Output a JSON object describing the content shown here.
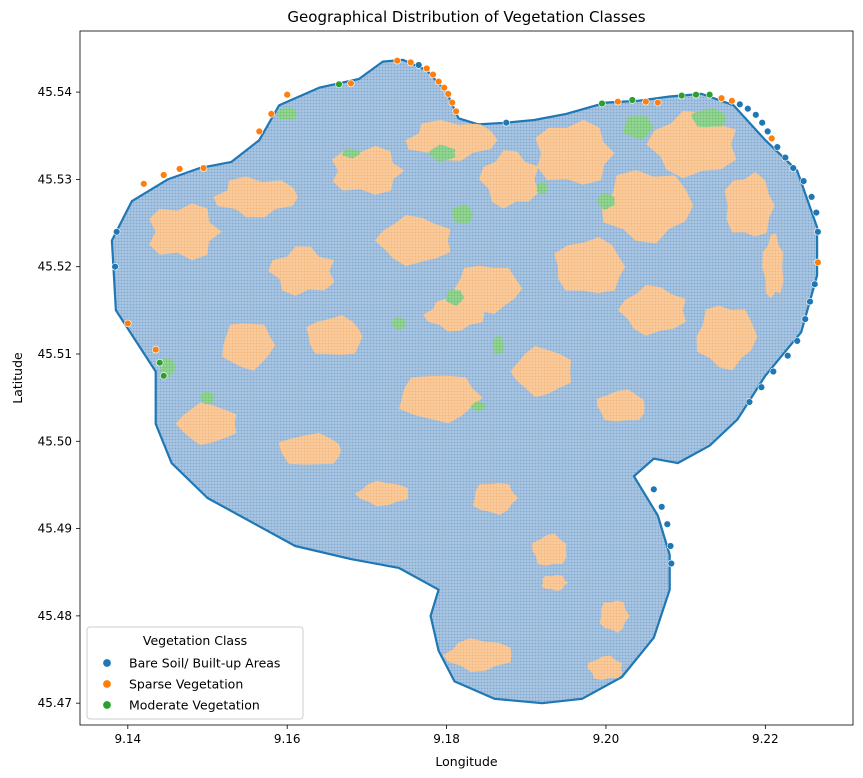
{
  "chart_data": {
    "type": "scatter",
    "title": "Geographical Distribution of Vegetation Classes",
    "xlabel": "Longitude",
    "ylabel": "Latitude",
    "xlim": [
      9.134,
      9.231
    ],
    "ylim": [
      45.4675,
      45.547
    ],
    "xticks": [
      9.14,
      9.16,
      9.18,
      9.2,
      9.22
    ],
    "xtick_labels": [
      "9.14",
      "9.16",
      "9.18",
      "9.20",
      "9.22"
    ],
    "yticks": [
      45.47,
      45.48,
      45.49,
      45.5,
      45.51,
      45.52,
      45.53,
      45.54
    ],
    "ytick_labels": [
      "45.47",
      "45.48",
      "45.49",
      "45.50",
      "45.51",
      "45.52",
      "45.53",
      "45.54"
    ],
    "grid": false,
    "legend": {
      "title": "Vegetation Class",
      "location": "lower-left"
    },
    "series": [
      {
        "name": "Bare Soil/ Built-up Areas",
        "color": "#1f77b4",
        "fill_color": "#aac6e2",
        "share": "dominant",
        "marker": "circle"
      },
      {
        "name": "Sparse Vegetation",
        "color": "#ff7f0e",
        "fill_color": "#f9c99a",
        "share": "patches",
        "marker": "circle"
      },
      {
        "name": "Moderate Vegetation",
        "color": "#2ca02c",
        "fill_color": "#8fd18f",
        "share": "small patches",
        "marker": "circle"
      }
    ],
    "region_outline": [
      [
        9.1435,
        45.508
      ],
      [
        9.1385,
        45.515
      ],
      [
        9.138,
        45.523
      ],
      [
        9.1405,
        45.5275
      ],
      [
        9.145,
        45.53
      ],
      [
        9.149,
        45.5313
      ],
      [
        9.153,
        45.532
      ],
      [
        9.1565,
        45.5345
      ],
      [
        9.159,
        45.5385
      ],
      [
        9.164,
        45.5405
      ],
      [
        9.169,
        45.5415
      ],
      [
        9.172,
        45.5435
      ],
      [
        9.1745,
        45.5437
      ],
      [
        9.1775,
        45.5425
      ],
      [
        9.18,
        45.54
      ],
      [
        9.1815,
        45.537
      ],
      [
        9.184,
        45.5363
      ],
      [
        9.1875,
        45.5365
      ],
      [
        9.191,
        45.5368
      ],
      [
        9.195,
        45.5375
      ],
      [
        9.2,
        45.5388
      ],
      [
        9.204,
        45.539
      ],
      [
        9.208,
        45.5395
      ],
      [
        9.212,
        45.5398
      ],
      [
        9.216,
        45.5385
      ],
      [
        9.22,
        45.5345
      ],
      [
        9.224,
        45.531
      ],
      [
        9.2265,
        45.5245
      ],
      [
        9.2265,
        45.519
      ],
      [
        9.2245,
        45.5125
      ],
      [
        9.22,
        45.5075
      ],
      [
        9.2165,
        45.5025
      ],
      [
        9.213,
        45.4995
      ],
      [
        9.209,
        45.4975
      ],
      [
        9.206,
        45.498
      ],
      [
        9.2035,
        45.496
      ],
      [
        9.2065,
        45.4915
      ],
      [
        9.208,
        45.487
      ],
      [
        9.208,
        45.483
      ],
      [
        9.206,
        45.4775
      ],
      [
        9.202,
        45.473
      ],
      [
        9.197,
        45.4705
      ],
      [
        9.192,
        45.47
      ],
      [
        9.186,
        45.4705
      ],
      [
        9.181,
        45.4725
      ],
      [
        9.179,
        45.476
      ],
      [
        9.178,
        45.48
      ],
      [
        9.179,
        45.483
      ],
      [
        9.174,
        45.4855
      ],
      [
        9.168,
        45.4865
      ],
      [
        9.161,
        45.488
      ],
      [
        9.156,
        45.4905
      ],
      [
        9.15,
        45.4935
      ],
      [
        9.1455,
        45.4975
      ],
      [
        9.1435,
        45.502
      ]
    ],
    "sparse_patches": [
      [
        9.147,
        45.524,
        0.005,
        0.0035
      ],
      [
        9.156,
        45.528,
        0.0055,
        0.0025
      ],
      [
        9.162,
        45.5195,
        0.0045,
        0.003
      ],
      [
        9.17,
        45.531,
        0.005,
        0.003
      ],
      [
        9.1805,
        45.5345,
        0.006,
        0.0025
      ],
      [
        9.188,
        45.53,
        0.004,
        0.0035
      ],
      [
        9.196,
        45.533,
        0.0055,
        0.004
      ],
      [
        9.205,
        45.527,
        0.006,
        0.0045
      ],
      [
        9.211,
        45.534,
        0.006,
        0.004
      ],
      [
        9.218,
        45.527,
        0.0035,
        0.004
      ],
      [
        9.215,
        45.512,
        0.004,
        0.004
      ],
      [
        9.206,
        45.515,
        0.0045,
        0.003
      ],
      [
        9.198,
        45.52,
        0.005,
        0.0035
      ],
      [
        9.185,
        45.5175,
        0.0045,
        0.003
      ],
      [
        9.176,
        45.523,
        0.005,
        0.003
      ],
      [
        9.166,
        45.512,
        0.004,
        0.0025
      ],
      [
        9.155,
        45.511,
        0.0035,
        0.003
      ],
      [
        9.15,
        45.502,
        0.004,
        0.0025
      ],
      [
        9.163,
        45.499,
        0.0045,
        0.002
      ],
      [
        9.179,
        45.505,
        0.0055,
        0.003
      ],
      [
        9.192,
        45.508,
        0.004,
        0.003
      ],
      [
        9.202,
        45.504,
        0.0035,
        0.002
      ],
      [
        9.186,
        45.4935,
        0.003,
        0.002
      ],
      [
        9.172,
        45.494,
        0.0035,
        0.0015
      ],
      [
        9.193,
        45.4875,
        0.0025,
        0.002
      ],
      [
        9.201,
        45.48,
        0.002,
        0.002
      ],
      [
        9.184,
        45.4755,
        0.0045,
        0.002
      ],
      [
        9.2,
        45.474,
        0.0025,
        0.0015
      ],
      [
        9.1935,
        45.4838,
        0.0018,
        0.001
      ],
      [
        9.181,
        45.5145,
        0.004,
        0.002
      ],
      [
        9.221,
        45.52,
        0.0015,
        0.004
      ]
    ],
    "moderate_patches": [
      [
        9.145,
        45.5085,
        0.001,
        0.0012
      ],
      [
        9.15,
        45.505,
        0.001,
        0.0008
      ],
      [
        9.16,
        45.5375,
        0.0015,
        0.0008
      ],
      [
        9.168,
        45.533,
        0.0012,
        0.0006
      ],
      [
        9.1795,
        45.533,
        0.0018,
        0.001
      ],
      [
        9.182,
        45.526,
        0.0015,
        0.0012
      ],
      [
        9.181,
        45.5165,
        0.0012,
        0.001
      ],
      [
        9.174,
        45.5135,
        0.001,
        0.0008
      ],
      [
        9.1865,
        45.511,
        0.0008,
        0.0012
      ],
      [
        9.204,
        45.536,
        0.002,
        0.0015
      ],
      [
        9.2,
        45.5275,
        0.0012,
        0.001
      ],
      [
        9.213,
        45.537,
        0.0025,
        0.0012
      ],
      [
        9.192,
        45.529,
        0.0008,
        0.0008
      ],
      [
        9.184,
        45.504,
        0.001,
        0.0006
      ]
    ],
    "edge_points": [
      {
        "class": 1,
        "x": 9.1738,
        "y": 45.5436
      },
      {
        "class": 1,
        "x": 9.1755,
        "y": 45.5434
      },
      {
        "class": 0,
        "x": 9.1765,
        "y": 45.5431
      },
      {
        "class": 1,
        "x": 9.1775,
        "y": 45.5427
      },
      {
        "class": 1,
        "x": 9.1783,
        "y": 45.542
      },
      {
        "class": 1,
        "x": 9.179,
        "y": 45.5412
      },
      {
        "class": 1,
        "x": 9.1797,
        "y": 45.5405
      },
      {
        "class": 1,
        "x": 9.1802,
        "y": 45.5398
      },
      {
        "class": 1,
        "x": 9.1807,
        "y": 45.5388
      },
      {
        "class": 1,
        "x": 9.1812,
        "y": 45.5378
      },
      {
        "class": 0,
        "x": 9.1875,
        "y": 45.5365
      },
      {
        "class": 1,
        "x": 9.1495,
        "y": 45.5313
      },
      {
        "class": 1,
        "x": 9.1465,
        "y": 45.5312
      },
      {
        "class": 1,
        "x": 9.1445,
        "y": 45.5305
      },
      {
        "class": 1,
        "x": 9.142,
        "y": 45.5295
      },
      {
        "class": 1,
        "x": 9.16,
        "y": 45.5397
      },
      {
        "class": 2,
        "x": 9.1665,
        "y": 45.5409
      },
      {
        "class": 1,
        "x": 9.168,
        "y": 45.541
      },
      {
        "class": 1,
        "x": 9.158,
        "y": 45.5375
      },
      {
        "class": 1,
        "x": 9.1565,
        "y": 45.5355
      },
      {
        "class": 2,
        "x": 9.1995,
        "y": 45.5387
      },
      {
        "class": 1,
        "x": 9.2015,
        "y": 45.5389
      },
      {
        "class": 2,
        "x": 9.2033,
        "y": 45.5391
      },
      {
        "class": 1,
        "x": 9.205,
        "y": 45.5389
      },
      {
        "class": 1,
        "x": 9.2065,
        "y": 45.5388
      },
      {
        "class": 2,
        "x": 9.2095,
        "y": 45.5396
      },
      {
        "class": 2,
        "x": 9.2113,
        "y": 45.5397
      },
      {
        "class": 2,
        "x": 9.213,
        "y": 45.5397
      },
      {
        "class": 1,
        "x": 9.2145,
        "y": 45.5393
      },
      {
        "class": 1,
        "x": 9.2158,
        "y": 45.539
      },
      {
        "class": 0,
        "x": 9.2168,
        "y": 45.5386
      },
      {
        "class": 0,
        "x": 9.2178,
        "y": 45.5381
      },
      {
        "class": 0,
        "x": 9.2188,
        "y": 45.5374
      },
      {
        "class": 0,
        "x": 9.2196,
        "y": 45.5365
      },
      {
        "class": 0,
        "x": 9.2203,
        "y": 45.5355
      },
      {
        "class": 1,
        "x": 9.2208,
        "y": 45.5347
      },
      {
        "class": 0,
        "x": 9.2215,
        "y": 45.5337
      },
      {
        "class": 0,
        "x": 9.2225,
        "y": 45.5325
      },
      {
        "class": 0,
        "x": 9.2235,
        "y": 45.5313
      },
      {
        "class": 0,
        "x": 9.2248,
        "y": 45.5298
      },
      {
        "class": 0,
        "x": 9.2258,
        "y": 45.528
      },
      {
        "class": 0,
        "x": 9.2264,
        "y": 45.5262
      },
      {
        "class": 0,
        "x": 9.2266,
        "y": 45.524
      },
      {
        "class": 1,
        "x": 9.2266,
        "y": 45.5205
      },
      {
        "class": 0,
        "x": 9.2262,
        "y": 45.518
      },
      {
        "class": 0,
        "x": 9.2256,
        "y": 45.516
      },
      {
        "class": 0,
        "x": 9.225,
        "y": 45.514
      },
      {
        "class": 0,
        "x": 9.224,
        "y": 45.5115
      },
      {
        "class": 0,
        "x": 9.2228,
        "y": 45.5098
      },
      {
        "class": 0,
        "x": 9.221,
        "y": 45.508
      },
      {
        "class": 0,
        "x": 9.2195,
        "y": 45.5062
      },
      {
        "class": 0,
        "x": 9.218,
        "y": 45.5045
      },
      {
        "class": 0,
        "x": 9.206,
        "y": 45.4945
      },
      {
        "class": 0,
        "x": 9.207,
        "y": 45.4925
      },
      {
        "class": 0,
        "x": 9.2077,
        "y": 45.4905
      },
      {
        "class": 0,
        "x": 9.2081,
        "y": 45.488
      },
      {
        "class": 0,
        "x": 9.2082,
        "y": 45.486
      },
      {
        "class": 2,
        "x": 9.144,
        "y": 45.509
      },
      {
        "class": 2,
        "x": 9.1445,
        "y": 45.5075
      },
      {
        "class": 1,
        "x": 9.1435,
        "y": 45.5105
      },
      {
        "class": 1,
        "x": 9.14,
        "y": 45.5135
      },
      {
        "class": 0,
        "x": 9.1384,
        "y": 45.52
      },
      {
        "class": 0,
        "x": 9.1386,
        "y": 45.524
      }
    ]
  }
}
